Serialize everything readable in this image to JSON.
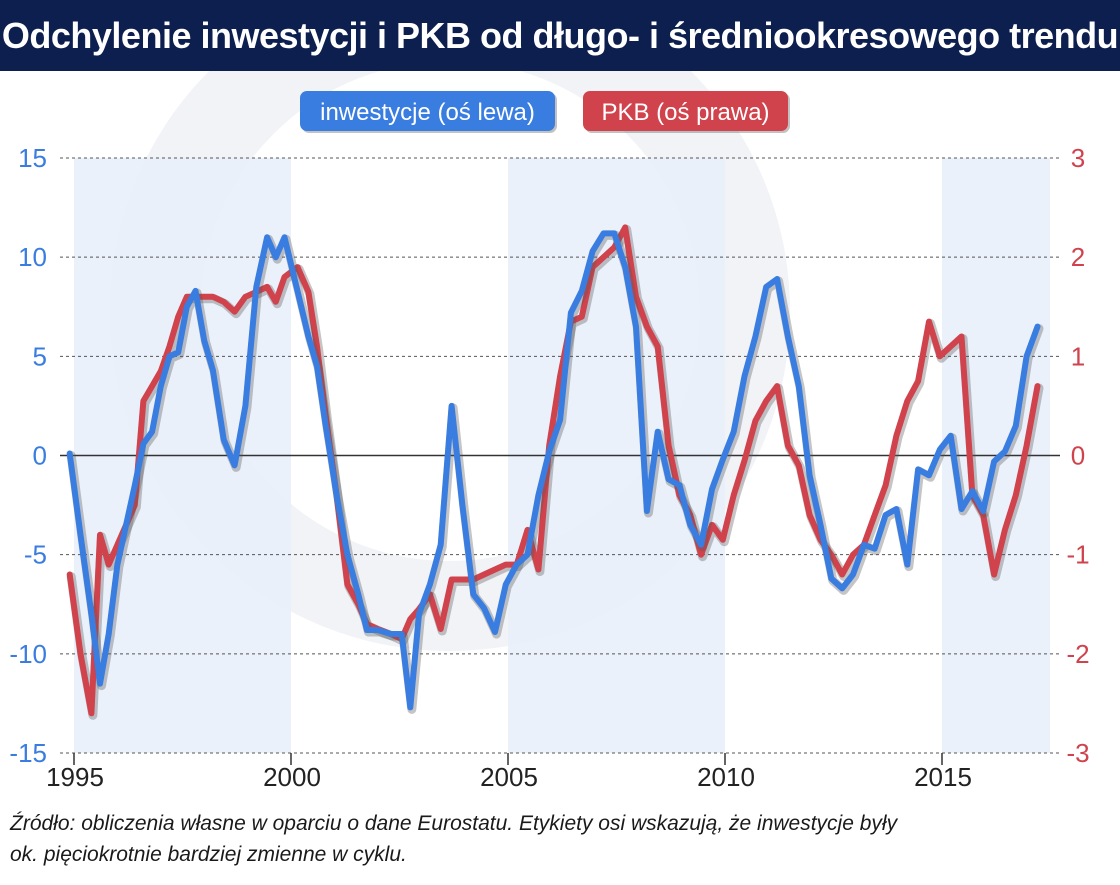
{
  "header": {
    "title": "Odchylenie inwestycji i PKB od długo- i średniookresowego trendu"
  },
  "footer": {
    "source_line1": "Źródło: obliczenia własne w oparciu o dane Eurostatu. Etykiety osi wskazują, że inwestycje były",
    "source_line2": "ok. pięciokrotnie bardziej zmienne w cyklu."
  },
  "chart_data": {
    "type": "line",
    "title": "Odchylenie inwestycji i PKB od długo- i średniookresowego trendu",
    "legend": [
      "inwestycje (oś lewa)",
      "PKB (oś prawa)"
    ],
    "legend_placement": "top-center",
    "colors": {
      "inwestycje": "#3a7de0",
      "pkb": "#d0424c",
      "header_bg": "#0d1f4e",
      "band": "#e8eff9"
    },
    "left_axis": {
      "ylim": [
        -15,
        15
      ],
      "ticks": [
        15,
        10,
        5,
        0,
        -5,
        -10,
        -15
      ],
      "color": "#3a7de0"
    },
    "right_axis": {
      "ylim": [
        -3,
        3
      ],
      "ticks": [
        3,
        2,
        1,
        0,
        -1,
        -2,
        -3
      ],
      "color": "#d0424c"
    },
    "x_axis": {
      "xlim": [
        1995,
        2017.5
      ],
      "ticks": [
        1995,
        2000,
        2005,
        2010,
        2015
      ]
    },
    "grid": "dashed horizontal",
    "shaded_periods": [
      [
        1995,
        2000
      ],
      [
        2005,
        2010
      ],
      [
        2015,
        2017.5
      ]
    ],
    "series": [
      {
        "name": "inwestycje (oś lewa)",
        "axis": "left",
        "points": [
          [
            1994.9,
            0.1
          ],
          [
            1995.15,
            -4.0
          ],
          [
            1995.4,
            -8.0
          ],
          [
            1995.6,
            -11.5
          ],
          [
            1995.8,
            -9.0
          ],
          [
            1996.0,
            -5.5
          ],
          [
            1996.2,
            -3.5
          ],
          [
            1996.4,
            -1.5
          ],
          [
            1996.6,
            0.6
          ],
          [
            1996.8,
            1.2
          ],
          [
            1997.0,
            3.5
          ],
          [
            1997.2,
            5.0
          ],
          [
            1997.4,
            5.2
          ],
          [
            1997.6,
            7.5
          ],
          [
            1997.8,
            8.3
          ],
          [
            1998.0,
            5.8
          ],
          [
            1998.2,
            4.3
          ],
          [
            1998.45,
            0.8
          ],
          [
            1998.7,
            -0.5
          ],
          [
            1998.95,
            2.5
          ],
          [
            1999.2,
            8.5
          ],
          [
            1999.45,
            11.0
          ],
          [
            1999.65,
            10.0
          ],
          [
            1999.85,
            11.0
          ],
          [
            2000.15,
            8.3
          ],
          [
            2000.4,
            6.0
          ],
          [
            2000.6,
            4.5
          ],
          [
            2000.8,
            1.5
          ],
          [
            2001.05,
            -2.0
          ],
          [
            2001.3,
            -5.0
          ],
          [
            2001.55,
            -7.0
          ],
          [
            2001.75,
            -8.8
          ],
          [
            2002.0,
            -8.8
          ],
          [
            2002.3,
            -9.0
          ],
          [
            2002.55,
            -9.0
          ],
          [
            2002.75,
            -12.7
          ],
          [
            2002.95,
            -8.0
          ],
          [
            2003.2,
            -6.5
          ],
          [
            2003.45,
            -4.5
          ],
          [
            2003.7,
            2.5
          ],
          [
            2003.95,
            -2.5
          ],
          [
            2004.2,
            -7.0
          ],
          [
            2004.45,
            -7.7
          ],
          [
            2004.7,
            -8.9
          ],
          [
            2004.95,
            -6.5
          ],
          [
            2005.2,
            -5.5
          ],
          [
            2005.45,
            -5.0
          ],
          [
            2005.7,
            -2.0
          ],
          [
            2005.95,
            0.2
          ],
          [
            2006.2,
            1.8
          ],
          [
            2006.45,
            7.2
          ],
          [
            2006.7,
            8.3
          ],
          [
            2006.95,
            10.3
          ],
          [
            2007.2,
            11.2
          ],
          [
            2007.45,
            11.2
          ],
          [
            2007.7,
            9.5
          ],
          [
            2007.95,
            6.5
          ],
          [
            2008.2,
            -2.8
          ],
          [
            2008.45,
            1.2
          ],
          [
            2008.7,
            -1.2
          ],
          [
            2008.95,
            -1.5
          ],
          [
            2009.2,
            -3.5
          ],
          [
            2009.45,
            -4.5
          ],
          [
            2009.7,
            -1.7
          ],
          [
            2009.95,
            -0.2
          ],
          [
            2010.2,
            1.2
          ],
          [
            2010.45,
            4.0
          ],
          [
            2010.7,
            6.0
          ],
          [
            2010.95,
            8.5
          ],
          [
            2011.2,
            8.9
          ],
          [
            2011.45,
            6.0
          ],
          [
            2011.7,
            3.5
          ],
          [
            2011.95,
            -1.0
          ],
          [
            2012.2,
            -3.5
          ],
          [
            2012.45,
            -6.2
          ],
          [
            2012.7,
            -6.7
          ],
          [
            2012.95,
            -6.0
          ],
          [
            2013.2,
            -4.5
          ],
          [
            2013.45,
            -4.7
          ],
          [
            2013.7,
            -3.0
          ],
          [
            2013.95,
            -2.7
          ],
          [
            2014.2,
            -5.5
          ],
          [
            2014.45,
            -0.7
          ],
          [
            2014.7,
            -1.0
          ],
          [
            2014.95,
            0.3
          ],
          [
            2015.2,
            1.0
          ],
          [
            2015.45,
            -2.7
          ],
          [
            2015.7,
            -1.8
          ],
          [
            2015.95,
            -2.8
          ],
          [
            2016.2,
            -0.3
          ],
          [
            2016.45,
            0.2
          ],
          [
            2016.7,
            1.5
          ],
          [
            2016.95,
            5.0
          ],
          [
            2017.2,
            6.5
          ]
        ]
      },
      {
        "name": "PKB (oś prawa)",
        "axis": "right",
        "points": [
          [
            1994.9,
            -1.2
          ],
          [
            1995.15,
            -2.0
          ],
          [
            1995.4,
            -2.6
          ],
          [
            1995.6,
            -0.8
          ],
          [
            1995.8,
            -1.1
          ],
          [
            1996.0,
            -0.9
          ],
          [
            1996.2,
            -0.7
          ],
          [
            1996.4,
            -0.5
          ],
          [
            1996.6,
            0.55
          ],
          [
            1996.8,
            0.7
          ],
          [
            1997.0,
            0.85
          ],
          [
            1997.2,
            1.1
          ],
          [
            1997.4,
            1.4
          ],
          [
            1997.6,
            1.6
          ],
          [
            1997.8,
            1.6
          ],
          [
            1998.0,
            1.6
          ],
          [
            1998.2,
            1.6
          ],
          [
            1998.45,
            1.55
          ],
          [
            1998.7,
            1.45
          ],
          [
            1998.95,
            1.6
          ],
          [
            1999.2,
            1.65
          ],
          [
            1999.45,
            1.7
          ],
          [
            1999.65,
            1.55
          ],
          [
            1999.85,
            1.8
          ],
          [
            2000.15,
            1.9
          ],
          [
            2000.4,
            1.65
          ],
          [
            2000.6,
            1.1
          ],
          [
            2000.8,
            0.4
          ],
          [
            2001.05,
            -0.4
          ],
          [
            2001.3,
            -1.3
          ],
          [
            2001.55,
            -1.5
          ],
          [
            2001.75,
            -1.7
          ],
          [
            2002.0,
            -1.75
          ],
          [
            2002.3,
            -1.8
          ],
          [
            2002.55,
            -1.85
          ],
          [
            2002.75,
            -1.65
          ],
          [
            2002.95,
            -1.55
          ],
          [
            2003.2,
            -1.4
          ],
          [
            2003.45,
            -1.75
          ],
          [
            2003.7,
            -1.25
          ],
          [
            2003.95,
            -1.25
          ],
          [
            2004.2,
            -1.25
          ],
          [
            2004.45,
            -1.2
          ],
          [
            2004.7,
            -1.15
          ],
          [
            2004.95,
            -1.1
          ],
          [
            2005.2,
            -1.1
          ],
          [
            2005.45,
            -0.75
          ],
          [
            2005.7,
            -1.15
          ],
          [
            2005.95,
            0.1
          ],
          [
            2006.2,
            0.8
          ],
          [
            2006.45,
            1.35
          ],
          [
            2006.7,
            1.4
          ],
          [
            2006.95,
            1.9
          ],
          [
            2007.2,
            2.0
          ],
          [
            2007.45,
            2.1
          ],
          [
            2007.7,
            2.3
          ],
          [
            2007.95,
            1.6
          ],
          [
            2008.2,
            1.3
          ],
          [
            2008.45,
            1.1
          ],
          [
            2008.7,
            0.1
          ],
          [
            2008.95,
            -0.4
          ],
          [
            2009.2,
            -0.6
          ],
          [
            2009.45,
            -1.0
          ],
          [
            2009.7,
            -0.7
          ],
          [
            2009.95,
            -0.85
          ],
          [
            2010.2,
            -0.4
          ],
          [
            2010.45,
            -0.05
          ],
          [
            2010.7,
            0.35
          ],
          [
            2010.95,
            0.55
          ],
          [
            2011.2,
            0.7
          ],
          [
            2011.45,
            0.1
          ],
          [
            2011.7,
            -0.1
          ],
          [
            2011.95,
            -0.6
          ],
          [
            2012.2,
            -0.85
          ],
          [
            2012.45,
            -1.0
          ],
          [
            2012.7,
            -1.2
          ],
          [
            2012.95,
            -1.0
          ],
          [
            2013.2,
            -0.9
          ],
          [
            2013.45,
            -0.6
          ],
          [
            2013.7,
            -0.3
          ],
          [
            2013.95,
            0.2
          ],
          [
            2014.2,
            0.55
          ],
          [
            2014.45,
            0.75
          ],
          [
            2014.7,
            1.35
          ],
          [
            2014.95,
            1.0
          ],
          [
            2015.2,
            1.1
          ],
          [
            2015.45,
            1.2
          ],
          [
            2015.7,
            -0.4
          ],
          [
            2015.95,
            -0.6
          ],
          [
            2016.2,
            -1.2
          ],
          [
            2016.45,
            -0.75
          ],
          [
            2016.7,
            -0.4
          ],
          [
            2016.95,
            0.1
          ],
          [
            2017.2,
            0.7
          ]
        ]
      }
    ]
  }
}
